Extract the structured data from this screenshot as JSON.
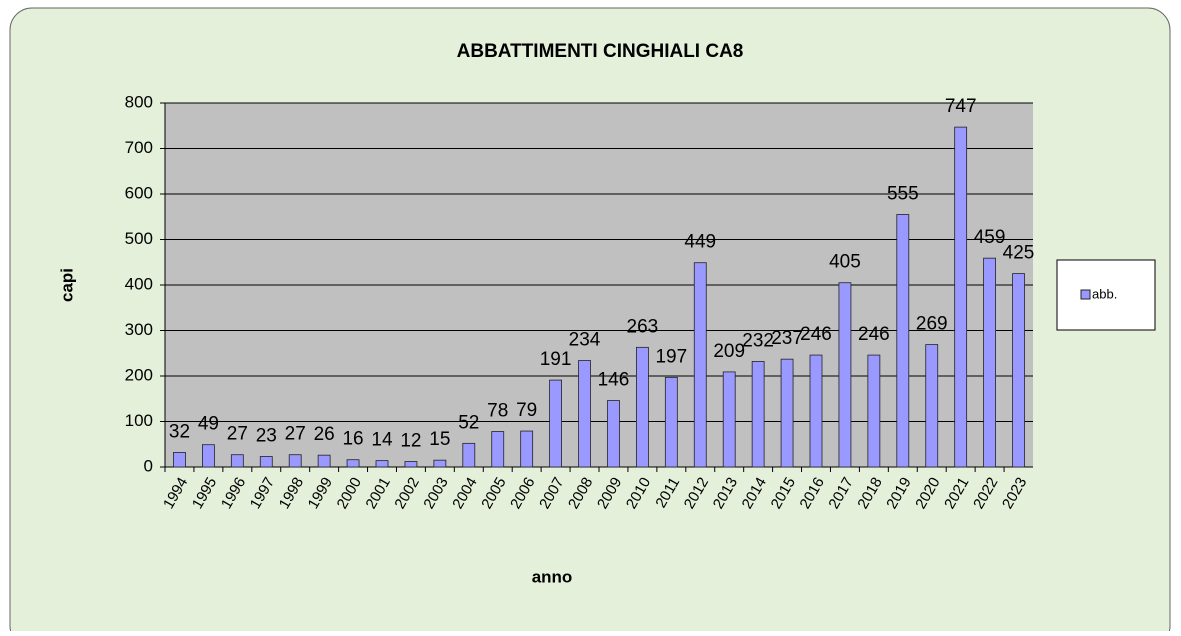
{
  "chart_data": {
    "type": "bar",
    "title": "ABBATTIMENTI CINGHIALI  CA8",
    "x_label": "anno",
    "y_label": "capi",
    "categories": [
      "1994",
      "1995",
      "1996",
      "1997",
      "1998",
      "1999",
      "2000",
      "2001",
      "2002",
      "2003",
      "2004",
      "2005",
      "2006",
      "2007",
      "2008",
      "2009",
      "2010",
      "2011",
      "2012",
      "2013",
      "2014",
      "2015",
      "2016",
      "2017",
      "2018",
      "2019",
      "2020",
      "2021",
      "2022",
      "2023"
    ],
    "series": [
      {
        "name": "abb.",
        "color": "#9999ff",
        "values": [
          32,
          49,
          27,
          23,
          27,
          26,
          16,
          14,
          12,
          15,
          52,
          78,
          79,
          191,
          234,
          146,
          263,
          197,
          449,
          209,
          232,
          237,
          246,
          405,
          246,
          555,
          269,
          747,
          459,
          425
        ]
      }
    ],
    "ylim": [
      0,
      800
    ],
    "yticks": [
      0,
      100,
      200,
      300,
      400,
      500,
      600,
      700,
      800
    ],
    "grid": true,
    "legend": "right"
  }
}
